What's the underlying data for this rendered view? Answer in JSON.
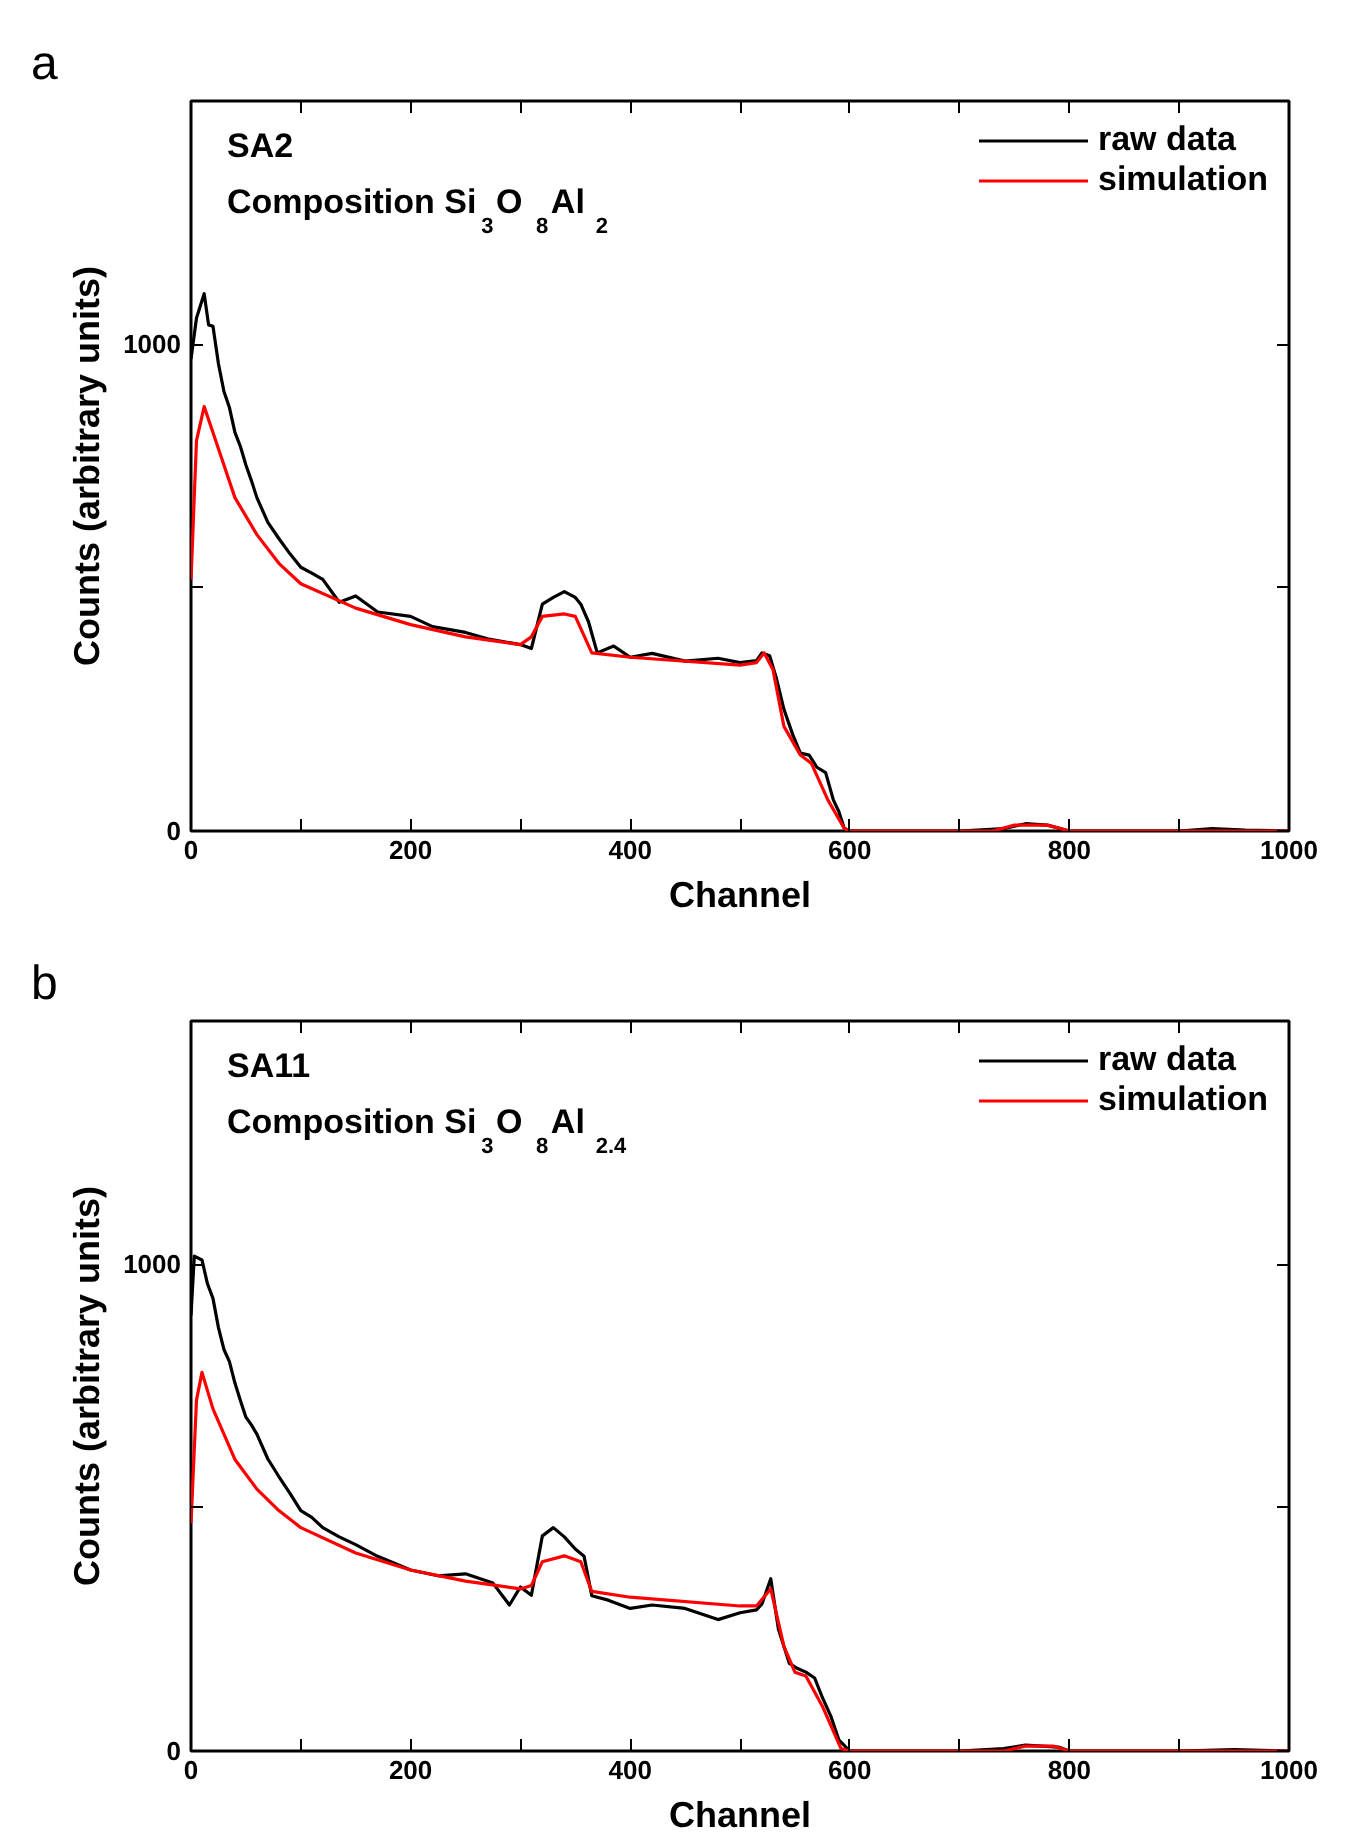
{
  "chart_data": [
    {
      "type": "line",
      "title": "a",
      "xlabel": "Channel",
      "ylabel": "Counts (arbitrary units)",
      "annotations": [
        "SA2",
        "Composition Si$_{3}$ O$_{8}$ Al$_{2}$"
      ],
      "xlim": [
        0,
        1000
      ],
      "ylim": [
        0,
        1500
      ],
      "xticks": [
        0,
        {
          "value": 100,
          "label": null
        },
        200,
        {
          "value": 300,
          "label": null
        },
        400,
        {
          "value": 500,
          "label": null
        },
        600,
        {
          "value": 700,
          "label": null
        },
        800,
        {
          "value": 900,
          "label": null
        },
        1000
      ],
      "yticks": [
        0,
        {
          "value": 500,
          "label": null
        },
        1000
      ],
      "legend": "top right",
      "grid": false,
      "line_style": "solid",
      "series": [
        {
          "name": "raw data",
          "color": "#000000",
          "x": [
            0,
            5,
            12,
            16,
            20,
            25,
            30,
            35,
            40,
            45,
            50,
            55,
            60,
            70,
            80,
            90,
            100,
            110,
            120,
            135,
            150,
            170,
            200,
            220,
            250,
            270,
            300,
            310,
            320,
            330,
            340,
            350,
            355,
            362,
            370,
            385,
            400,
            420,
            450,
            480,
            500,
            515,
            520,
            527,
            533,
            540,
            548,
            555,
            563,
            570,
            578,
            585,
            590,
            595,
            600,
            650,
            700,
            740,
            760,
            780,
            800,
            850,
            900,
            930,
            960,
            1000
          ],
          "values": [
            970,
            1054,
            1104,
            1040,
            1037,
            960,
            903,
            870,
            819,
            790,
            752,
            720,
            685,
            634,
            601,
            570,
            542,
            530,
            517,
            470,
            483,
            450,
            441,
            420,
            408,
            395,
            383,
            375,
            466,
            480,
            492,
            480,
            466,
            430,
            366,
            380,
            357,
            365,
            349,
            355,
            346,
            350,
            366,
            360,
            315,
            250,
            198,
            160,
            156,
            131,
            120,
            64,
            40,
            5,
            0,
            0,
            0,
            5,
            15,
            12,
            0,
            0,
            0,
            5,
            2,
            0
          ]
        },
        {
          "name": "simulation",
          "color": "#ff0000",
          "x": [
            0,
            5,
            12,
            20,
            40,
            60,
            80,
            100,
            150,
            200,
            250,
            300,
            310,
            320,
            340,
            350,
            365,
            400,
            500,
            515,
            522,
            530,
            540,
            555,
            565,
            580,
            595,
            600,
            730,
            750,
            780,
            800,
            1000
          ],
          "values": [
            517,
            802,
            872,
            819,
            685,
            609,
            550,
            508,
            458,
            424,
            399,
            383,
            399,
            441,
            446,
            441,
            366,
            357,
            341,
            346,
            366,
            332,
            215,
            156,
            139,
            64,
            5,
            0,
            0,
            12,
            12,
            0,
            0
          ]
        }
      ]
    },
    {
      "type": "line",
      "title": "b",
      "xlabel": "Channel",
      "ylabel": "Counts (arbitrary units)",
      "annotations": [
        "SA11",
        "Composition Si$_{3}$ O$_{8}$ Al$_{2.4}$"
      ],
      "xlim": [
        0,
        1000
      ],
      "ylim": [
        0,
        1500
      ],
      "xticks": [
        0,
        {
          "value": 100,
          "label": null
        },
        200,
        {
          "value": 300,
          "label": null
        },
        400,
        {
          "value": 500,
          "label": null
        },
        600,
        {
          "value": 700,
          "label": null
        },
        800,
        {
          "value": 900,
          "label": null
        },
        1000
      ],
      "yticks": [
        0,
        {
          "value": 500,
          "label": null
        },
        1000
      ],
      "legend": "top right",
      "grid": false,
      "line_style": "solid",
      "series": [
        {
          "name": "raw data",
          "color": "#000000",
          "x": [
            0,
            3,
            10,
            15,
            20,
            25,
            30,
            35,
            40,
            45,
            50,
            55,
            60,
            70,
            80,
            90,
            100,
            110,
            120,
            135,
            150,
            170,
            200,
            225,
            250,
            275,
            290,
            300,
            310,
            320,
            330,
            340,
            350,
            358,
            365,
            380,
            400,
            420,
            450,
            480,
            500,
            515,
            520,
            528,
            535,
            545,
            552,
            560,
            568,
            575,
            583,
            590,
            600,
            650,
            700,
            740,
            760,
            790,
            800,
            850,
            900,
            950,
            1000
          ],
          "values": [
            895,
            1017,
            1009,
            960,
            930,
            870,
            825,
            800,
            756,
            720,
            686,
            670,
            651,
            600,
            564,
            530,
            494,
            480,
            459,
            440,
            424,
            400,
            372,
            360,
            364,
            345,
            300,
            337,
            320,
            442,
            459,
            440,
            415,
            400,
            319,
            310,
            293,
            300,
            293,
            270,
            284,
            290,
            302,
            354,
            250,
            180,
            170,
            162,
            150,
            110,
            70,
            23,
            0,
            0,
            0,
            5,
            12,
            8,
            0,
            0,
            0,
            3,
            0
          ]
        },
        {
          "name": "simulation",
          "color": "#ff0000",
          "x": [
            0,
            5,
            10,
            20,
            40,
            60,
            80,
            100,
            150,
            200,
            250,
            300,
            310,
            320,
            340,
            355,
            365,
            400,
            500,
            515,
            528,
            540,
            550,
            560,
            575,
            592,
            600,
            740,
            760,
            785,
            800,
            1000
          ],
          "values": [
            468,
            721,
            778,
            703,
            599,
            538,
            494,
            459,
            407,
            372,
            349,
            333,
            340,
            389,
            401,
            389,
            328,
            316,
            298,
            298,
            333,
            215,
            162,
            154,
            92,
            5,
            0,
            0,
            10,
            10,
            0,
            0
          ]
        }
      ]
    }
  ]
}
